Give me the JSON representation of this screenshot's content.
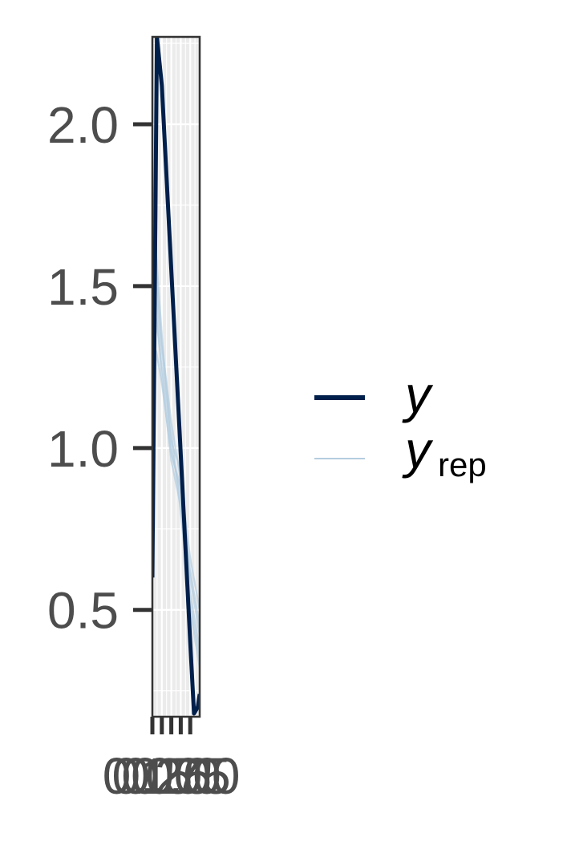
{
  "chart_data": {
    "type": "line",
    "title": "",
    "xlabel": "",
    "ylabel": "",
    "xlim": [
      0,
      1.25
    ],
    "ylim": [
      0.17,
      2.27
    ],
    "x_ticks": [
      {
        "value": 0.0,
        "label": "0.00"
      },
      {
        "value": 0.25,
        "label": "0.25"
      },
      {
        "value": 0.5,
        "label": "0.50"
      },
      {
        "value": 0.75,
        "label": "0.75"
      },
      {
        "value": 1.0,
        "label": "1.00"
      }
    ],
    "y_ticks": [
      {
        "value": 0.5,
        "label": "0.5"
      },
      {
        "value": 1.0,
        "label": "1.0"
      },
      {
        "value": 1.5,
        "label": "1.5"
      },
      {
        "value": 2.0,
        "label": "2.0"
      }
    ],
    "grid": true,
    "legend_position": "right",
    "series": [
      {
        "name": "y",
        "role": "observed",
        "color": "#011f4b",
        "x": [
          0.0,
          0.12,
          0.25,
          0.5,
          0.75,
          1.0,
          1.1,
          1.2,
          1.25
        ],
        "y": [
          0.6,
          2.27,
          2.12,
          1.55,
          0.98,
          0.4,
          0.18,
          0.2,
          0.24
        ]
      },
      {
        "name": "y_rep",
        "role": "replicated",
        "color": "#b3cde0",
        "draws": [
          {
            "x": [
              0.0,
              0.1,
              0.25,
              0.5,
              0.75,
              1.0,
              1.25
            ],
            "y": [
              0.9,
              1.6,
              1.35,
              1.0,
              0.85,
              0.6,
              0.42
            ]
          },
          {
            "x": [
              0.0,
              0.1,
              0.25,
              0.5,
              0.75,
              1.0,
              1.25
            ],
            "y": [
              0.8,
              1.4,
              1.25,
              1.02,
              0.93,
              0.55,
              0.38
            ]
          },
          {
            "x": [
              0.0,
              0.1,
              0.25,
              0.5,
              0.75,
              1.0,
              1.25
            ],
            "y": [
              1.0,
              1.5,
              1.3,
              1.05,
              0.8,
              0.5,
              0.32
            ]
          },
          {
            "x": [
              0.0,
              0.1,
              0.25,
              0.5,
              0.75,
              1.0,
              1.25
            ],
            "y": [
              0.7,
              1.3,
              1.2,
              0.98,
              0.88,
              0.62,
              0.45
            ]
          },
          {
            "x": [
              0.0,
              0.1,
              0.25,
              0.5,
              0.75,
              1.0,
              1.25
            ],
            "y": [
              0.85,
              1.55,
              1.32,
              1.08,
              0.9,
              0.66,
              0.5
            ]
          },
          {
            "x": [
              0.0,
              0.1,
              0.25,
              0.5,
              0.75,
              1.0,
              1.25
            ],
            "y": [
              0.95,
              1.45,
              1.22,
              0.96,
              0.82,
              0.52,
              0.35
            ]
          }
        ]
      }
    ],
    "legend": [
      {
        "series": "y",
        "label_main": "y",
        "label_sub": ""
      },
      {
        "series": "y_rep",
        "label_main": "y",
        "label_sub": "rep"
      }
    ]
  }
}
